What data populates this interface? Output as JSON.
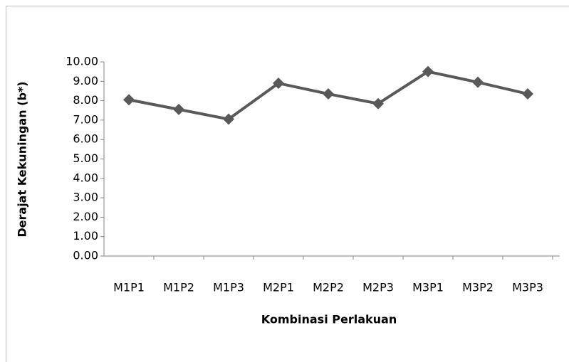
{
  "chart_data": {
    "type": "line",
    "x_label": "Kombinasi Perlakuan",
    "y_label": "Derajat Kekuningan (b*)",
    "categories": [
      "M1P1",
      "M1P2",
      "M1P3",
      "M2P1",
      "M2P2",
      "M2P3",
      "M3P1",
      "M3P2",
      "M3P3"
    ],
    "series": [
      {
        "color": "#595959",
        "values": [
          8.05,
          7.55,
          7.05,
          8.9,
          8.35,
          7.85,
          9.5,
          8.95,
          8.35
        ]
      }
    ],
    "ylim": [
      0,
      10
    ],
    "yticks": [
      {
        "value": 0,
        "label": "0.00"
      },
      {
        "value": 1,
        "label": "1.00"
      },
      {
        "value": 2,
        "label": "2.00"
      },
      {
        "value": 3,
        "label": "3.00"
      },
      {
        "value": 4,
        "label": "4.00"
      },
      {
        "value": 5,
        "label": "5.00"
      },
      {
        "value": 6,
        "label": "6.00"
      },
      {
        "value": 7,
        "label": "7.00"
      },
      {
        "value": 8,
        "label": "8.00"
      },
      {
        "value": 9,
        "label": "9.00"
      },
      {
        "value": 10,
        "label": "10.00"
      }
    ],
    "grid": false
  }
}
